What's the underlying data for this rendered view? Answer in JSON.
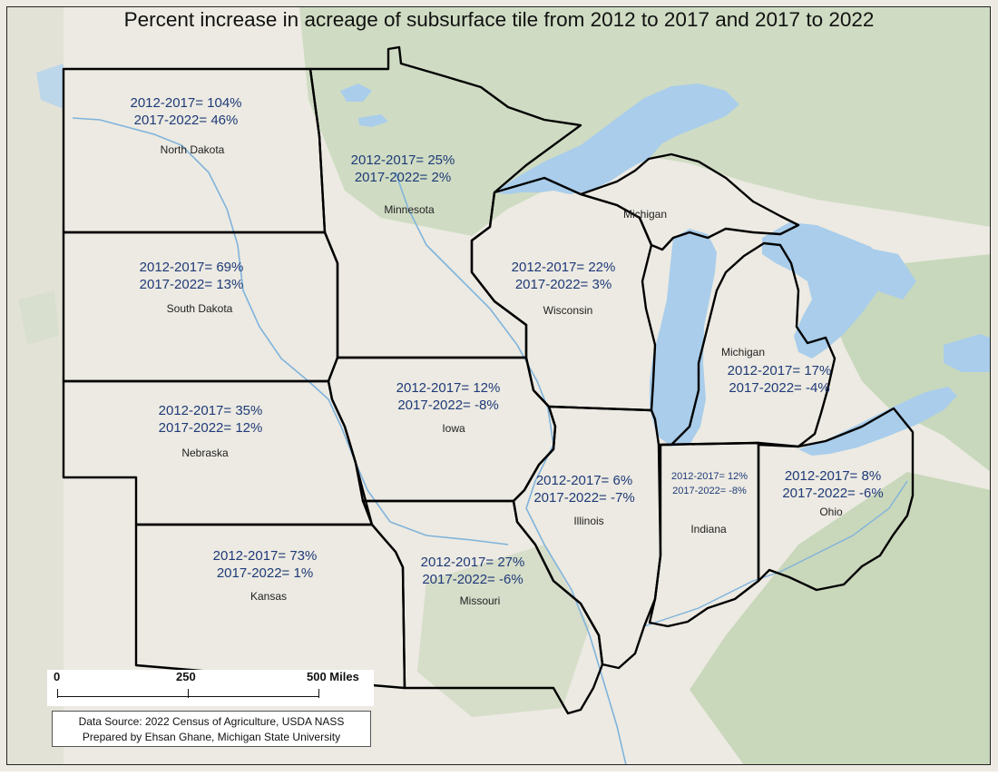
{
  "title": "Percent increase in acreage of subsurface tile from 2012 to 2017 and 2017 to 2022",
  "colors": {
    "land": "#eceae2",
    "forest": "#cfdcc3",
    "water": "#a9cdeb",
    "river": "#7fb3dc",
    "border": "#000000",
    "stats_text": "#1f3a78"
  },
  "states": [
    {
      "name": "North Dakota",
      "stat_2012_2017": "2012-2017= 104%",
      "stat_2017_2022": "2017-2022= 46%"
    },
    {
      "name": "Minnesota",
      "stat_2012_2017": "2012-2017= 25%",
      "stat_2017_2022": "2017-2022= 2%"
    },
    {
      "name": "South Dakota",
      "stat_2012_2017": "2012-2017= 69%",
      "stat_2017_2022": "2017-2022= 13%"
    },
    {
      "name": "Wisconsin",
      "stat_2012_2017": "2012-2017= 22%",
      "stat_2017_2022": "2017-2022= 3%"
    },
    {
      "name": "Michigan",
      "stat_2012_2017": "2012-2017= 17%",
      "stat_2017_2022": "2017-2022= -4%",
      "upper_label": "Michigan"
    },
    {
      "name": "Nebraska",
      "stat_2012_2017": "2012-2017= 35%",
      "stat_2017_2022": "2017-2022= 12%"
    },
    {
      "name": "Iowa",
      "stat_2012_2017": "2012-2017= 12%",
      "stat_2017_2022": "2017-2022= -8%"
    },
    {
      "name": "Illinois",
      "stat_2012_2017": "2012-2017= 6%",
      "stat_2017_2022": "2017-2022= -7%"
    },
    {
      "name": "Indiana",
      "stat_2012_2017": "2012-2017= 12%",
      "stat_2017_2022": "2017-2022= -8%"
    },
    {
      "name": "Ohio",
      "stat_2012_2017": "2012-2017= 8%",
      "stat_2017_2022": "2017-2022= -6%"
    },
    {
      "name": "Kansas",
      "stat_2012_2017": "2012-2017= 73%",
      "stat_2017_2022": "2017-2022= 1%"
    },
    {
      "name": "Missouri",
      "stat_2012_2017": "2012-2017= 27%",
      "stat_2017_2022": "2017-2022= -6%"
    }
  ],
  "scalebar": {
    "labels": [
      "0",
      "250",
      "500 Miles"
    ]
  },
  "source": {
    "line1": "Data Source: 2022 Census of Agriculture, USDA NASS",
    "line2": "Prepared by Ehsan Ghane, Michigan State University"
  }
}
